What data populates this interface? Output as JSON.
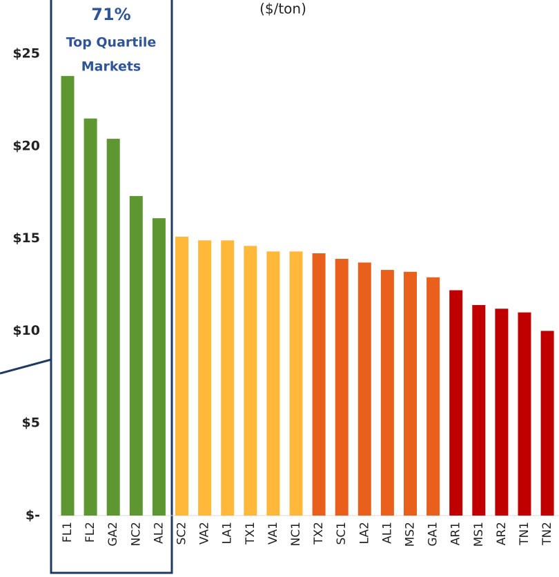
{
  "chart_data": {
    "type": "bar",
    "title": "($/ton)",
    "categories": [
      "FL1",
      "FL2",
      "GA2",
      "NC2",
      "AL2",
      "SC2",
      "VA2",
      "LA1",
      "TX1",
      "VA1",
      "NC1",
      "TX2",
      "SC1",
      "LA2",
      "AL1",
      "MS2",
      "GA1",
      "AR1",
      "MS1",
      "AR2",
      "TN1",
      "TN2"
    ],
    "values": [
      23.8,
      21.5,
      20.4,
      17.3,
      16.1,
      15.1,
      14.9,
      14.9,
      14.6,
      14.3,
      14.3,
      14.2,
      13.9,
      13.7,
      13.3,
      13.2,
      12.9,
      12.2,
      11.4,
      11.2,
      11.0,
      10.0
    ],
    "colors": [
      "#5e9732",
      "#5e9732",
      "#5e9732",
      "#5e9732",
      "#5e9732",
      "#ffb83a",
      "#ffb83a",
      "#ffb83a",
      "#ffb83a",
      "#ffb83a",
      "#ffb83a",
      "#e8601c",
      "#e8601c",
      "#e8601c",
      "#e8601c",
      "#e8601c",
      "#e8601c",
      "#c00000",
      "#c00000",
      "#c00000",
      "#c00000",
      "#c00000"
    ],
    "ylim": [
      0,
      25
    ],
    "yticks": [
      {
        "value": 0,
        "label": "$-"
      },
      {
        "value": 5,
        "label": "$5"
      },
      {
        "value": 10,
        "label": "$10"
      },
      {
        "value": 15,
        "label": "$15"
      },
      {
        "value": 20,
        "label": "$20"
      },
      {
        "value": 25,
        "label": "$25"
      }
    ],
    "annotation": {
      "headline": "71%",
      "lines": [
        "Top Quartile",
        "Markets"
      ]
    }
  }
}
